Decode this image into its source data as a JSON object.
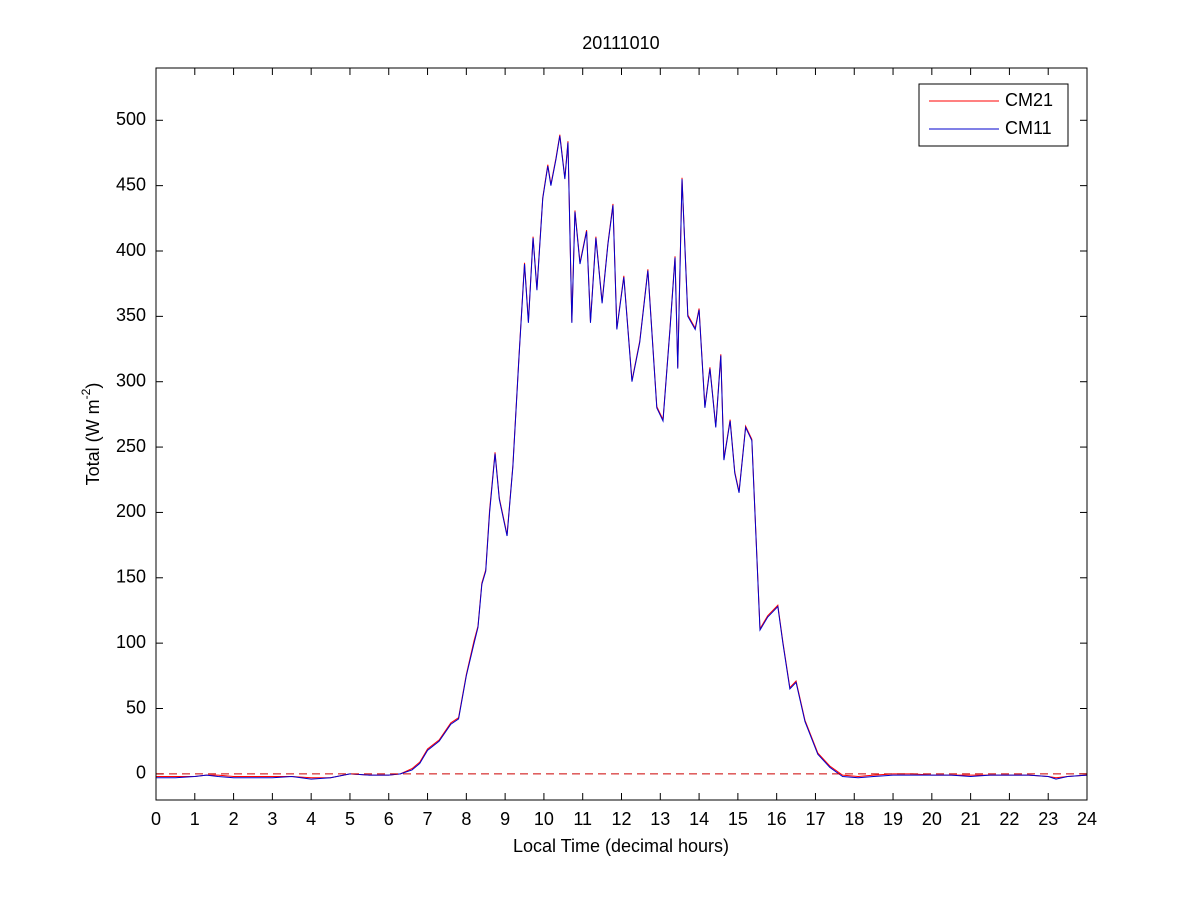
{
  "chart_data": {
    "type": "line",
    "title": "20111010",
    "xlabel": "Local Time (decimal hours)",
    "ylabel": [
      "Total (W m",
      "-2",
      ")"
    ],
    "x": [
      0,
      0.5,
      1,
      1.3,
      1.6,
      2,
      2.5,
      3,
      3.5,
      4,
      4.5,
      5,
      5.5,
      6,
      6.3,
      6.6,
      6.8,
      7,
      7.3,
      7.6,
      7.8,
      8,
      8.2,
      8.3,
      8.4,
      8.5,
      8.6,
      8.74,
      8.85,
      9.05,
      9.2,
      9.36,
      9.5,
      9.6,
      9.72,
      9.82,
      9.97,
      10.1,
      10.18,
      10.31,
      10.41,
      10.54,
      10.62,
      10.72,
      10.8,
      10.93,
      11.1,
      11.2,
      11.34,
      11.5,
      11.65,
      11.78,
      11.88,
      12.06,
      12.27,
      12.47,
      12.68,
      12.91,
      13.07,
      13.25,
      13.38,
      13.45,
      13.56,
      13.71,
      13.9,
      14.0,
      14.15,
      14.28,
      14.43,
      14.56,
      14.64,
      14.8,
      14.92,
      15.03,
      15.2,
      15.36,
      15.57,
      15.77,
      16.03,
      16.16,
      16.34,
      16.5,
      16.73,
      17.06,
      17.37,
      17.7,
      18.1,
      18.5,
      19,
      19.5,
      20,
      20.5,
      21,
      21.5,
      22,
      22.5,
      23,
      23.2,
      23.5,
      24
    ],
    "series": [
      {
        "name": "CM21",
        "color": "#ff0000",
        "values": [
          -2,
          -2,
          -2,
          -1,
          -1,
          -2,
          -2,
          -2,
          -2,
          -3,
          -3,
          0,
          -1,
          -1,
          0,
          4,
          9,
          19,
          26,
          39,
          43,
          76,
          102,
          113,
          146,
          156,
          202,
          246,
          211,
          183,
          236,
          321,
          391,
          346,
          411,
          371,
          441,
          466,
          451,
          471,
          489,
          456,
          484,
          346,
          431,
          391,
          416,
          346,
          411,
          361,
          406,
          436,
          341,
          381,
          301,
          331,
          386,
          281,
          271,
          341,
          396,
          311,
          456,
          351,
          341,
          356,
          281,
          311,
          266,
          321,
          241,
          271,
          231,
          216,
          266,
          256,
          111,
          121,
          129,
          101,
          66,
          71,
          41,
          16,
          6,
          -1,
          -2,
          -1,
          0,
          0,
          -1,
          -1,
          -1,
          -1,
          -1,
          -1,
          -2,
          -3,
          -2,
          -1
        ]
      },
      {
        "name": "CM11",
        "color": "#0000cc",
        "values": [
          -3,
          -3,
          -2,
          -1,
          -2,
          -3,
          -3,
          -3,
          -2,
          -4,
          -3,
          0,
          -1,
          -1,
          0,
          3,
          8,
          18,
          25,
          38,
          42,
          75,
          100,
          112,
          145,
          155,
          200,
          245,
          210,
          182,
          235,
          320,
          390,
          345,
          410,
          370,
          440,
          465,
          450,
          470,
          488,
          455,
          483,
          345,
          430,
          390,
          415,
          345,
          410,
          360,
          405,
          435,
          340,
          380,
          300,
          330,
          385,
          280,
          270,
          340,
          395,
          310,
          455,
          350,
          340,
          355,
          280,
          310,
          265,
          320,
          240,
          270,
          230,
          215,
          265,
          255,
          110,
          120,
          128,
          100,
          65,
          70,
          40,
          15,
          5,
          -2,
          -3,
          -2,
          -1,
          -1,
          -1,
          -1,
          -2,
          -1,
          -1,
          -1,
          -2,
          -4,
          -2,
          -1
        ]
      }
    ],
    "reference_line": {
      "value": 0,
      "color": "#cc0000",
      "style": "dashed"
    },
    "xlim": [
      0,
      24
    ],
    "xticks": [
      0,
      1,
      2,
      3,
      4,
      5,
      6,
      7,
      8,
      9,
      10,
      11,
      12,
      13,
      14,
      15,
      16,
      17,
      18,
      19,
      20,
      21,
      22,
      23,
      24
    ],
    "ylim": [
      -20,
      540
    ],
    "yticks": [
      0,
      50,
      100,
      150,
      200,
      250,
      300,
      350,
      400,
      450,
      500
    ],
    "grid": false,
    "legend": "top-right"
  }
}
